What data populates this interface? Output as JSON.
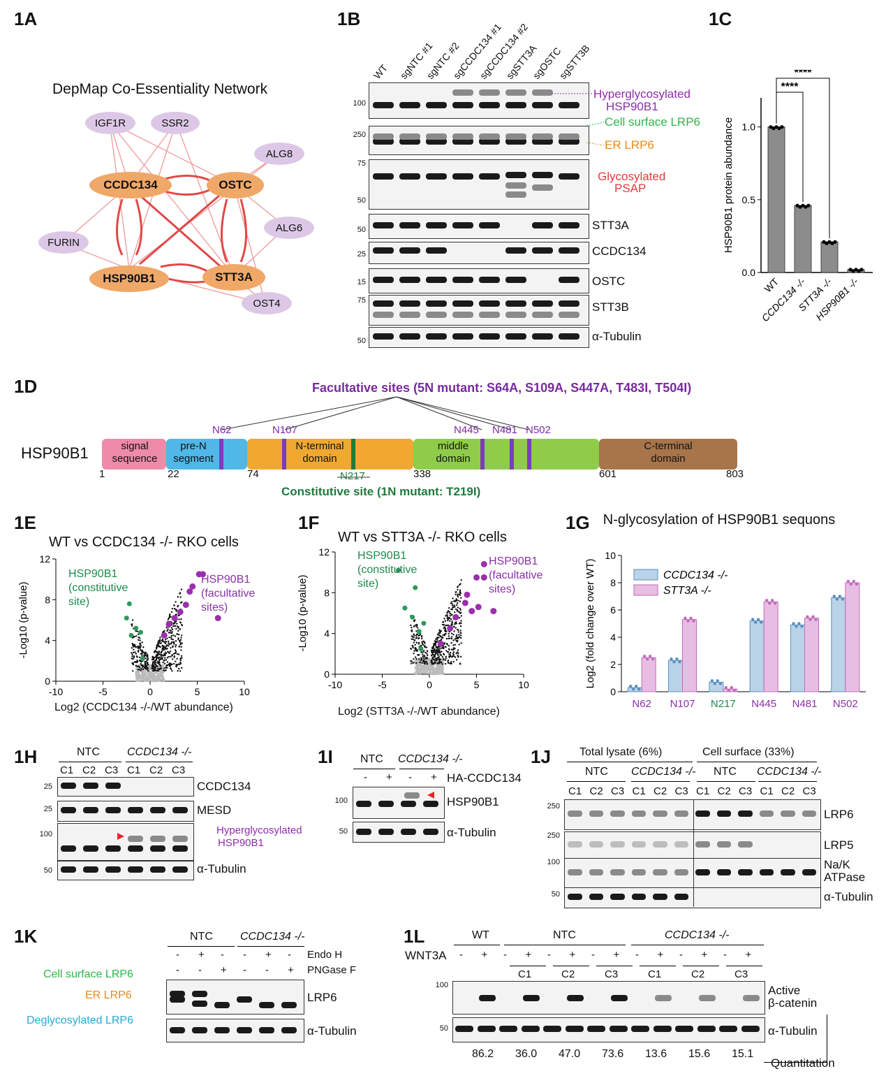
{
  "panels": {
    "a": "1A",
    "b": "1B",
    "c": "1C",
    "d": "1D",
    "e": "1E",
    "f": "1F",
    "g": "1G",
    "h": "1H",
    "i": "1I",
    "j": "1J",
    "k": "1K",
    "l": "1L"
  },
  "panel_a": {
    "title": "DepMap Co-Essentiality Network",
    "nodes": [
      "IGF1R",
      "SSR2",
      "ALG8",
      "CCDC134",
      "OSTC",
      "ALG6",
      "FURIN",
      "HSP90B1",
      "STT3A",
      "OST4"
    ]
  },
  "panel_b": {
    "lanes": [
      "WT",
      "sgNTC #1",
      "sgNTC #2",
      "sgCCDC134 #1",
      "sgCCDC134 #2",
      "sgSTT3A",
      "sgOSTC",
      "sgSTT3B"
    ],
    "markers": [
      "100",
      "250",
      "75",
      "50",
      "50",
      "25",
      "15",
      "75",
      "50"
    ],
    "labels": [
      "Hyperglycosylated",
      "HSP90B1",
      "Cell surface LRP6",
      "ER LRP6",
      "Glycosylated",
      "PSAP",
      "STT3A",
      "CCDC134",
      "OSTC",
      "STT3B",
      "α-Tubulin"
    ]
  },
  "panel_c": {
    "chart_data": {
      "type": "bar",
      "categories": [
        "WT",
        "CCDC134 -/-",
        "STT3A -/-",
        "HSP90B1 -/-"
      ],
      "values": [
        1.0,
        0.46,
        0.21,
        0.02
      ],
      "ylabel": "HSP90B1 protein abundance",
      "ylim": [
        0,
        1.2
      ],
      "yticks": [
        "0.0",
        "0.5",
        "1.0"
      ],
      "significance": [
        "****",
        "****"
      ]
    }
  },
  "panel_d": {
    "facultative": "Facultative sites (5N mutant: S64A, S109A, S447A, T483I, T504I)",
    "constitutive": "Constitutive site (1N mutant: T219I)",
    "protein": "HSP90B1",
    "sites": [
      "N62",
      "N107",
      "N445",
      "N481",
      "N502"
    ],
    "site_constitutive": "N217",
    "domains": [
      "signal sequence",
      "pre-N segment",
      "N-terminal domain",
      "middle domain",
      "C-terminal domain"
    ],
    "positions": [
      "1",
      "22",
      "74",
      "338",
      "601",
      "803"
    ]
  },
  "panel_e": {
    "title": "WT vs CCDC134 -/- RKO cells",
    "ylabel": "-Log10 (p-value)",
    "xlabel": "Log2 (CCDC134 -/-/WT abundance)",
    "ann_constitutive": "HSP90B1 (constitutive site)",
    "ann_facultative": "HSP90B1 (facultative sites)",
    "xticks": [
      "-10",
      "-5",
      "0",
      "5",
      "10"
    ],
    "yticks": [
      "0",
      "4",
      "8",
      "12"
    ]
  },
  "panel_f": {
    "title": "WT vs STT3A -/- RKO cells",
    "ylabel": "-Log10 (p-value)",
    "xlabel": "Log2 (STT3A -/-/WT abundance)",
    "ann_constitutive": "HSP90B1 (constitutive site)",
    "ann_facultative": "HSP90B1 (facultative sites)",
    "xticks": [
      "-10",
      "-5",
      "0",
      "5",
      "10"
    ],
    "yticks": [
      "0",
      "4",
      "8",
      "12"
    ]
  },
  "panel_g": {
    "chart_data": {
      "type": "bar",
      "title": "N-glycosylation of HSP90B1 sequons",
      "categories": [
        "N62",
        "N107",
        "N217",
        "N445",
        "N481",
        "N502"
      ],
      "series": [
        {
          "name": "CCDC134 -/-",
          "values": [
            0.3,
            2.3,
            0.7,
            5.2,
            4.9,
            6.9
          ]
        },
        {
          "name": "STT3A -/-",
          "values": [
            2.5,
            5.3,
            0.2,
            6.6,
            5.4,
            8.0
          ]
        }
      ],
      "ylabel": "Log2 (fold change over WT)",
      "ylim": [
        0,
        10
      ],
      "yticks": [
        "0",
        "2",
        "4",
        "6",
        "8",
        "10"
      ]
    }
  },
  "panel_h": {
    "groups": [
      "NTC",
      "CCDC134 -/-"
    ],
    "clones": [
      "C1",
      "C2",
      "C3",
      "C1",
      "C2",
      "C3"
    ],
    "markers": [
      "25",
      "25",
      "100",
      "50"
    ],
    "labels": [
      "CCDC134",
      "MESD",
      "Hyperglycosylated",
      "HSP90B1",
      "α-Tubulin"
    ]
  },
  "panel_i": {
    "groups": [
      "NTC",
      "CCDC134 -/-"
    ],
    "treatment": "HA-CCDC134",
    "signs": [
      "-",
      "+",
      "-",
      "+"
    ],
    "markers": [
      "100",
      "50"
    ],
    "labels": [
      "HSP90B1",
      "α-Tubulin"
    ]
  },
  "panel_j": {
    "sections": [
      "Total lysate (6%)",
      "Cell surface (33%)"
    ],
    "groups": [
      "NTC",
      "CCDC134 -/-",
      "NTC",
      "CCDC134 -/-"
    ],
    "clones": [
      "C1",
      "C2",
      "C3",
      "C1",
      "C2",
      "C3",
      "C1",
      "C2",
      "C3",
      "C1",
      "C2",
      "C3"
    ],
    "markers": [
      "250",
      "250",
      "100",
      "50"
    ],
    "labels": [
      "LRP6",
      "LRP5",
      "Na/K",
      "ATPase",
      "α-Tubulin"
    ]
  },
  "panel_k": {
    "groups": [
      "NTC",
      "CCDC134 -/-"
    ],
    "rows": [
      "Endo H",
      "PNGase F"
    ],
    "endo_signs": [
      "-",
      "+",
      "-",
      "-",
      "+",
      "-"
    ],
    "png_signs": [
      "-",
      "-",
      "+",
      "-",
      "-",
      "+"
    ],
    "side_labels": [
      "Cell surface LRP6",
      "ER LRP6",
      "Deglycosylated LRP6"
    ],
    "labels": [
      "LRP6",
      "α-Tubulin"
    ]
  },
  "panel_l": {
    "groups": [
      "WT",
      "NTC",
      "CCDC134 -/-"
    ],
    "treatment": "WNT3A",
    "signs": [
      "-",
      "+",
      "-",
      "+",
      "-",
      "+",
      "-",
      "+",
      "-",
      "+",
      "-",
      "+",
      "-",
      "+"
    ],
    "clones": [
      "C1",
      "C2",
      "C3",
      "C1",
      "C2",
      "C3"
    ],
    "markers": [
      "100",
      "50"
    ],
    "labels": [
      "Active",
      "β-catenin",
      "α-Tubulin"
    ],
    "quant": [
      "86.2",
      "36.0",
      "47.0",
      "73.6",
      "13.6",
      "15.6",
      "15.1"
    ],
    "quant_label": "Quantitation"
  },
  "colors": {
    "core": "#f0a868",
    "peripheral": "#dcc8e6",
    "purple": "#8b2fa8",
    "green": "#1f8a4c",
    "red": "#e23b3b",
    "orange": "#e88a1a",
    "cyan": "#2aa7d8",
    "bar_blue": "#b9d3e8",
    "bar_pink": "#e8bde3"
  }
}
